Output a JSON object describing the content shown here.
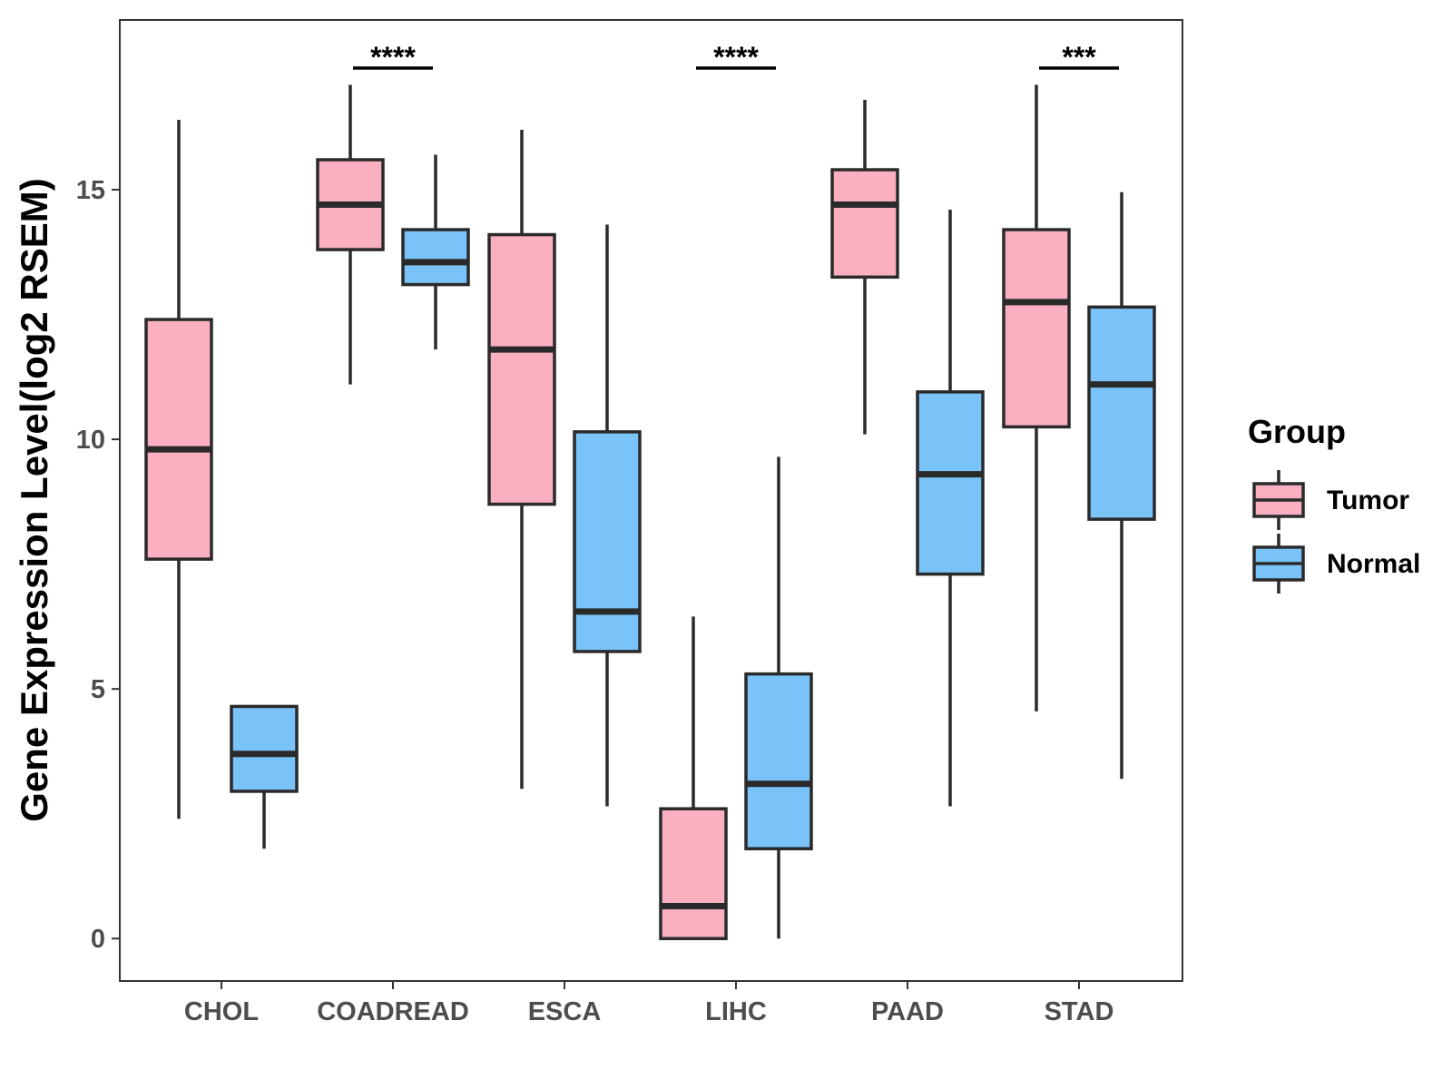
{
  "chart_data": {
    "type": "boxplot",
    "ylabel": "Gene Expression Level(log2 RSEM)",
    "xlabel": "",
    "ylim": [
      -0.85,
      18.4
    ],
    "yticks": [
      0,
      5,
      10,
      15
    ],
    "categories": [
      "CHOL",
      "COADREAD",
      "ESCA",
      "LIHC",
      "PAAD",
      "STAD"
    ],
    "legend": {
      "title": "Group",
      "position": "right",
      "entries": [
        {
          "name": "Tumor",
          "color": "#FBB0C2"
        },
        {
          "name": "Normal",
          "color": "#79C3F8"
        }
      ]
    },
    "series": [
      {
        "name": "Tumor",
        "color": "#FBB0C2",
        "boxes": [
          {
            "category": "CHOL",
            "min": 2.4,
            "q1": 7.6,
            "median": 9.8,
            "q3": 12.4,
            "max": 16.4
          },
          {
            "category": "COADREAD",
            "min": 11.1,
            "q1": 13.8,
            "median": 14.7,
            "q3": 15.6,
            "max": 17.1
          },
          {
            "category": "ESCA",
            "min": 3.0,
            "q1": 8.7,
            "median": 11.8,
            "q3": 14.1,
            "max": 16.2
          },
          {
            "category": "LIHC",
            "min": 0.0,
            "q1": 0.0,
            "median": 0.65,
            "q3": 2.6,
            "max": 6.45
          },
          {
            "category": "PAAD",
            "min": 10.1,
            "q1": 13.25,
            "median": 14.7,
            "q3": 15.4,
            "max": 16.8
          },
          {
            "category": "STAD",
            "min": 4.55,
            "q1": 10.25,
            "median": 12.75,
            "q3": 14.2,
            "max": 17.1
          }
        ]
      },
      {
        "name": "Normal",
        "color": "#79C3F8",
        "boxes": [
          {
            "category": "CHOL",
            "min": 1.8,
            "q1": 2.95,
            "median": 3.7,
            "q3": 4.65,
            "max": 4.65
          },
          {
            "category": "COADREAD",
            "min": 11.8,
            "q1": 13.1,
            "median": 13.55,
            "q3": 14.2,
            "max": 15.7
          },
          {
            "category": "ESCA",
            "min": 2.65,
            "q1": 5.75,
            "median": 6.55,
            "q3": 10.15,
            "max": 14.3
          },
          {
            "category": "LIHC",
            "min": 0.0,
            "q1": 1.8,
            "median": 3.1,
            "q3": 5.3,
            "max": 9.65
          },
          {
            "category": "PAAD",
            "min": 2.65,
            "q1": 7.3,
            "median": 9.3,
            "q3": 10.95,
            "max": 14.6
          },
          {
            "category": "STAD",
            "min": 3.2,
            "q1": 8.4,
            "median": 11.1,
            "q3": 12.65,
            "max": 14.95
          }
        ]
      }
    ],
    "significance": [
      {
        "category": "COADREAD",
        "label": "****"
      },
      {
        "category": "LIHC",
        "label": "****"
      },
      {
        "category": "STAD",
        "label": "***"
      }
    ]
  }
}
